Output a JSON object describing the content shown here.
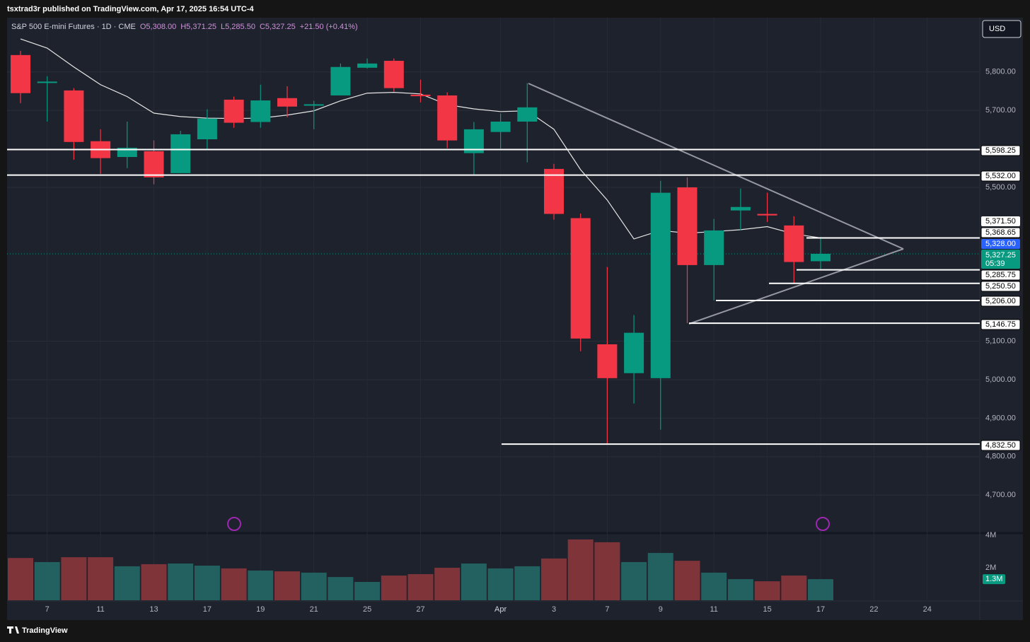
{
  "header": "tsxtrad3r published on TradingView.com, Apr 17, 2025 16:54 UTC-4",
  "footer": "TradingView",
  "chart_data": {
    "type": "candlestick",
    "title": "S&P 500 E-mini Futures · 1D · CME",
    "ohlc_labels": [
      "O5,308.00",
      "H5,371.25",
      "L5,285.50",
      "C5,327.25"
    ],
    "change_label": "+21.50 (+0.41%)",
    "currency": "USD",
    "categories": [
      null,
      "7",
      null,
      "11",
      null,
      "13",
      null,
      "17",
      null,
      "19",
      null,
      "21",
      null,
      "25",
      null,
      "27",
      null,
      null,
      "Apr",
      null,
      "3",
      null,
      "7",
      null,
      "9",
      null,
      "11",
      null,
      "15",
      null,
      "17",
      null,
      "22",
      null,
      "24"
    ],
    "open": [
      5844,
      5772,
      5752,
      5620,
      5579,
      5594,
      5537,
      5625,
      5728,
      5670,
      5732,
      5714,
      5739,
      5811,
      5829,
      5741,
      5739,
      5589,
      5644,
      5671,
      5548,
      5420,
      5092,
      5017,
      5004,
      5500,
      5298,
      5440,
      5431,
      5401,
      5308,
      null,
      null,
      null,
      null
    ],
    "high": [
      5855,
      5789,
      5758,
      5651,
      5671,
      5622,
      5647,
      5703,
      5736,
      5767,
      5763,
      5725,
      5822,
      5835,
      5835,
      5780,
      5747,
      5670,
      5692,
      5771,
      5561,
      5432,
      5293,
      5168,
      5517,
      5526,
      5418,
      5497,
      5486,
      5425,
      5371.25,
      null,
      null,
      null,
      null
    ],
    "low": [
      5719,
      5671,
      5572,
      5535,
      5550,
      5508,
      5537,
      5600,
      5655,
      5655,
      5682,
      5651,
      5739,
      5809,
      5749,
      5721,
      5602,
      5533,
      5601,
      5565,
      5416,
      5074,
      4832.5,
      4938,
      4870,
      5146.75,
      5206,
      5388,
      5410,
      5250.5,
      5285.5,
      null,
      null,
      null,
      null
    ],
    "close": [
      5745,
      5775,
      5618,
      5576,
      5603,
      5526,
      5638,
      5679,
      5668,
      5726,
      5710,
      5716,
      5813,
      5822,
      5758,
      5737,
      5622,
      5651,
      5671,
      5708,
      5431,
      5107,
      5004,
      5122,
      5486,
      5298,
      5388,
      5449,
      5427,
      5306,
      5327.25,
      null,
      null,
      null,
      null
    ],
    "moving_average": [
      5886,
      5862,
      5813,
      5767,
      5736,
      5693,
      5684,
      5680,
      5679,
      5680,
      5688,
      5699,
      5725,
      5745,
      5747,
      5743,
      5715,
      5704,
      5697,
      5699,
      5651,
      5546,
      5467,
      5366,
      5388,
      5381,
      5385,
      5390,
      5398,
      5379,
      5368.65,
      null,
      null,
      null,
      null
    ],
    "volume": [
      2.6,
      2.35,
      2.65,
      2.65,
      2.09,
      2.22,
      2.26,
      2.13,
      1.96,
      1.83,
      1.78,
      1.7,
      1.43,
      1.13,
      1.52,
      1.61,
      2.0,
      2.26,
      1.96,
      2.09,
      2.57,
      3.74,
      3.57,
      2.35,
      2.91,
      2.43,
      1.7,
      1.3,
      1.17,
      1.52,
      1.3,
      null,
      null,
      null,
      null
    ],
    "volume_label": "1.3M",
    "up_color": "#089981",
    "down_color": "#f23645",
    "volume_up_color": "#22615f",
    "volume_down_color": "#7f3439",
    "ma_color": "#e6e6e6",
    "ylim": [
      4603,
      5943
    ],
    "yticks": [
      {
        "value": 5800,
        "label": "5,800.00"
      },
      {
        "value": 5700,
        "label": "5,700.00"
      },
      {
        "value": 5500,
        "label": "5,500.00"
      },
      {
        "value": 5100,
        "label": "5,100.00"
      },
      {
        "value": 5000,
        "label": "5,000.00"
      },
      {
        "value": 4900,
        "label": "4,900.00"
      },
      {
        "value": 4800,
        "label": "4,800.00"
      },
      {
        "value": 4700,
        "label": "4,700.00"
      }
    ],
    "volume_lim": [
      0,
      4
    ],
    "volume_ticks": [
      {
        "value": 4,
        "label": "4M"
      },
      {
        "value": 2,
        "label": "2M"
      }
    ],
    "levels": [
      5598.25,
      5532,
      5368.65,
      5285.75,
      5250.5,
      5206,
      5146.75,
      4832.5
    ],
    "level_labels": [
      "5,598.25",
      "5,532.00",
      "5,368.65",
      "5,285.75",
      "5,250.50",
      "5,206.00",
      "5,146.75",
      "4,832.50"
    ],
    "markers": [
      5371.5,
      5328
    ],
    "marker_labels": [
      "5,371.50",
      "5,328.00"
    ],
    "last_price_label": "5,327.25",
    "countdown": "05:39",
    "grid": true
  }
}
